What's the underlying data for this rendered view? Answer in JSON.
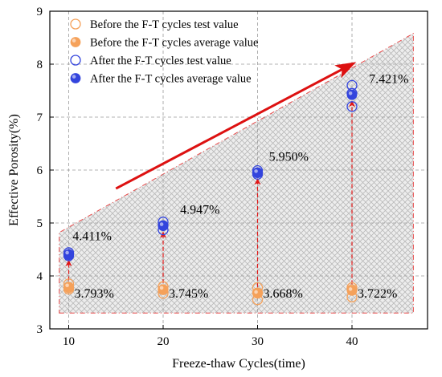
{
  "chart_data": {
    "type": "scatter",
    "xlabel": "Freeze-thaw Cycles(time)",
    "ylabel": "Effective Porosity(%)",
    "xlim": [
      8,
      48
    ],
    "ylim": [
      3,
      9
    ],
    "x_ticks": [
      10,
      20,
      30,
      40
    ],
    "y_ticks": [
      3,
      4,
      5,
      6,
      7,
      8,
      9
    ],
    "grid": "dashed",
    "legend_position": "top-left",
    "series": [
      {
        "name": "Before the F-T cycles test value",
        "marker": "hollow-circle",
        "color": "#f5a15a",
        "points": [
          {
            "x": 10,
            "y": 3.85
          },
          {
            "x": 10,
            "y": 3.78
          },
          {
            "x": 10,
            "y": 3.75
          },
          {
            "x": 20,
            "y": 3.8
          },
          {
            "x": 20,
            "y": 3.74
          },
          {
            "x": 20,
            "y": 3.67
          },
          {
            "x": 30,
            "y": 3.78
          },
          {
            "x": 30,
            "y": 3.68
          },
          {
            "x": 30,
            "y": 3.55
          },
          {
            "x": 40,
            "y": 3.78
          },
          {
            "x": 40,
            "y": 3.74
          },
          {
            "x": 40,
            "y": 3.6
          }
        ]
      },
      {
        "name": "Before the F-T cycles average value",
        "marker": "filled-circle",
        "color": "#f5a15a",
        "points": [
          {
            "x": 10,
            "y": 3.793
          },
          {
            "x": 20,
            "y": 3.745
          },
          {
            "x": 30,
            "y": 3.668
          },
          {
            "x": 40,
            "y": 3.722
          }
        ]
      },
      {
        "name": "After the F-T cycles test value",
        "marker": "hollow-circle",
        "color": "#3344dd",
        "points": [
          {
            "x": 10,
            "y": 4.44
          },
          {
            "x": 10,
            "y": 4.4
          },
          {
            "x": 10,
            "y": 4.38
          },
          {
            "x": 20,
            "y": 5.02
          },
          {
            "x": 20,
            "y": 4.95
          },
          {
            "x": 20,
            "y": 4.87
          },
          {
            "x": 30,
            "y": 5.99
          },
          {
            "x": 30,
            "y": 5.95
          },
          {
            "x": 30,
            "y": 5.92
          },
          {
            "x": 40,
            "y": 7.6
          },
          {
            "x": 40,
            "y": 7.45
          },
          {
            "x": 40,
            "y": 7.2
          }
        ]
      },
      {
        "name": "After the F-T cycles average value",
        "marker": "filled-circle",
        "color": "#3344dd",
        "points": [
          {
            "x": 10,
            "y": 4.411
          },
          {
            "x": 20,
            "y": 4.947
          },
          {
            "x": 30,
            "y": 5.95
          },
          {
            "x": 40,
            "y": 7.421
          }
        ]
      }
    ],
    "annotations": [
      {
        "text": "3.793%",
        "x": 10.6,
        "y": 3.67
      },
      {
        "text": "3.745%",
        "x": 20.6,
        "y": 3.67
      },
      {
        "text": "3.668%",
        "x": 30.6,
        "y": 3.67
      },
      {
        "text": "3.722%",
        "x": 40.6,
        "y": 3.67
      },
      {
        "text": "4.411%",
        "x": 10.4,
        "y": 4.75
      },
      {
        "text": "4.947%",
        "x": 21.8,
        "y": 5.25
      },
      {
        "text": "5.950%",
        "x": 31.2,
        "y": 6.25
      },
      {
        "text": "7.421%",
        "x": 41.8,
        "y": 7.72
      }
    ],
    "change_arrows": [
      {
        "x": 10,
        "from": 3.793,
        "to": 4.411
      },
      {
        "x": 20,
        "from": 3.745,
        "to": 4.947
      },
      {
        "x": 30,
        "from": 3.668,
        "to": 5.95
      },
      {
        "x": 40,
        "from": 3.722,
        "to": 7.421
      }
    ],
    "trend_arrow": {
      "from": [
        15,
        5.65
      ],
      "to": [
        40,
        8.0
      ],
      "color": "#dd1111"
    },
    "trend_region": {
      "polygon": [
        [
          9,
          3.3
        ],
        [
          46.5,
          3.3
        ],
        [
          46.5,
          8.58
        ],
        [
          9,
          4.82
        ]
      ],
      "fill": "crosshatch-gray",
      "border_color": "#e84a4a"
    }
  }
}
